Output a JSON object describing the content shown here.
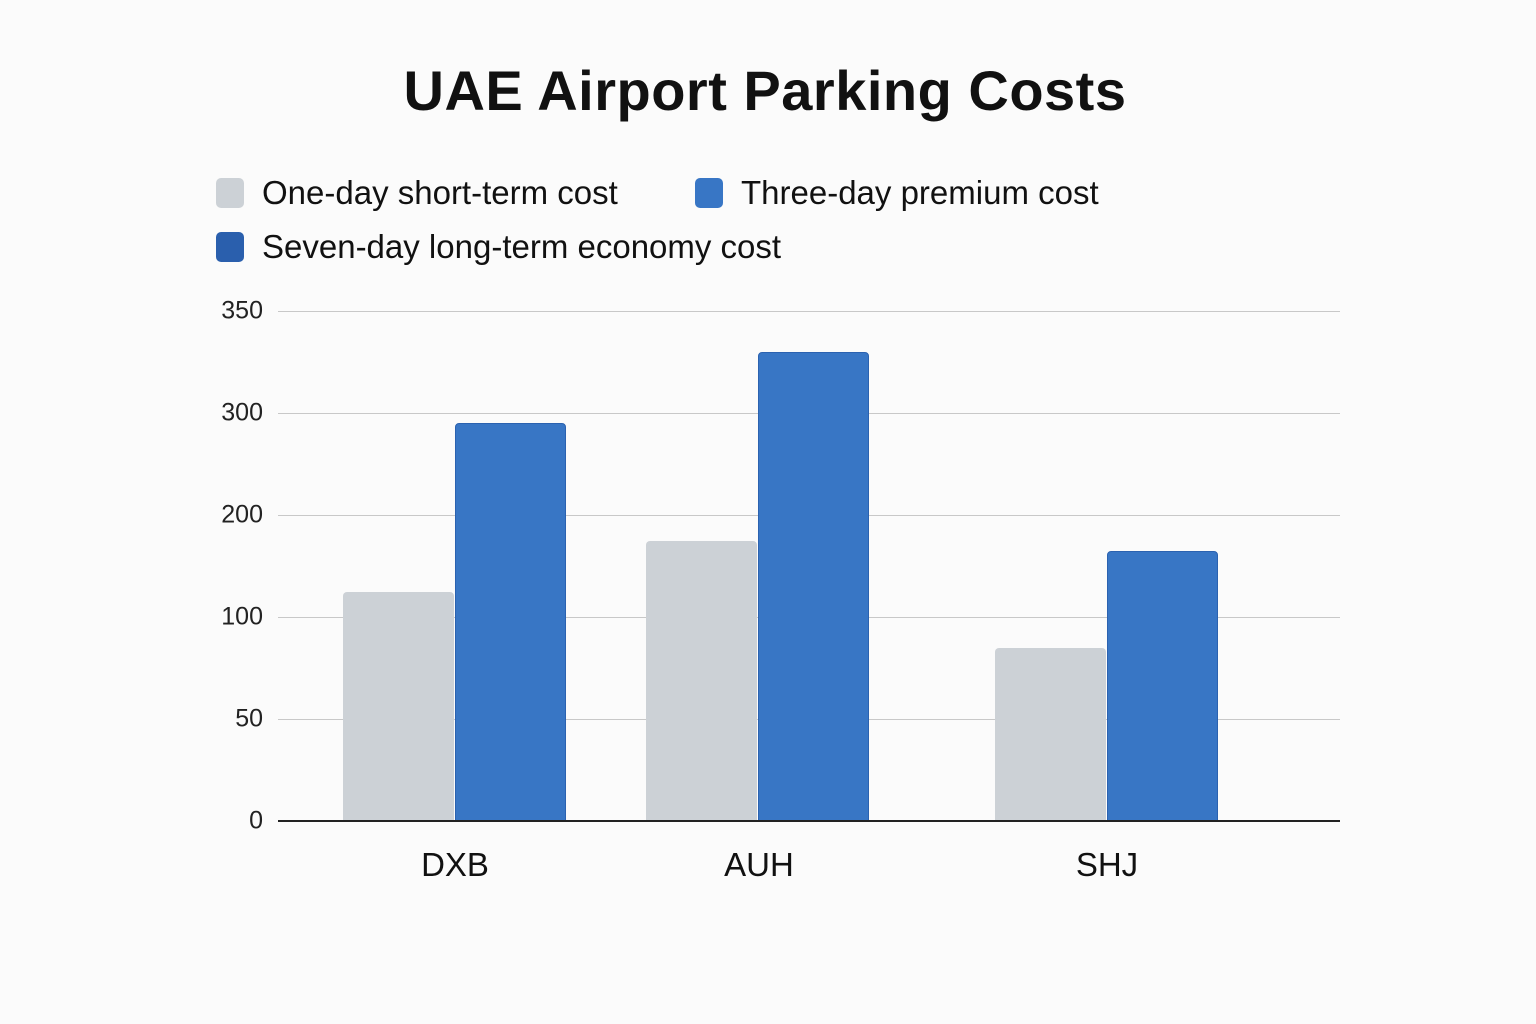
{
  "chart_data": {
    "type": "bar",
    "title": "UAE Airport Parking Costs",
    "xlabel": "",
    "ylabel": "",
    "categories": [
      "DXB",
      "AUH",
      "SHJ"
    ],
    "series": [
      {
        "name": "One-day short-term cost",
        "color": "#ccd1d6",
        "values": [
          125,
          175,
          85
        ]
      },
      {
        "name": "Three-day premium cost",
        "color": "#3876c5",
        "values": [
          290,
          330,
          165
        ]
      },
      {
        "name": "Seven-day long-term economy cost",
        "color": "#2a5fad",
        "values": [
          null,
          null,
          null
        ]
      }
    ],
    "yticks": [
      0,
      50,
      100,
      200,
      300,
      350
    ],
    "ylim": [
      0,
      350
    ],
    "grid": true,
    "legend_position": "top-left"
  }
}
